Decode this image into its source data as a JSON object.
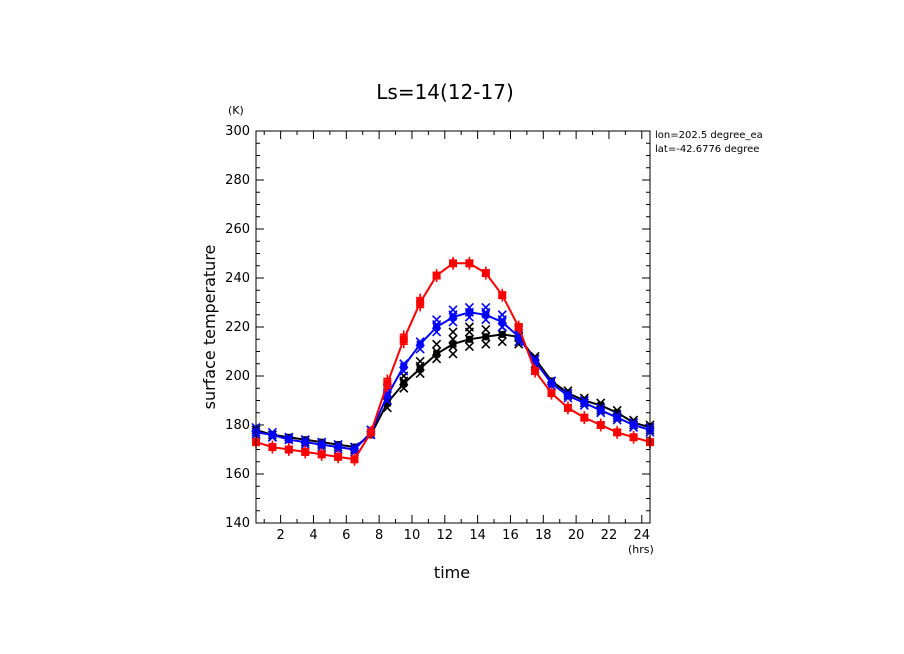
{
  "chart_data": {
    "type": "line",
    "title": "Ls=14(12-17)",
    "xlabel": "time",
    "ylabel": "surface temperature",
    "x_unit": "(hrs)",
    "y_unit": "(K)",
    "xlim": [
      0.5,
      24.5
    ],
    "ylim": [
      140,
      300
    ],
    "x_ticks": [
      2,
      4,
      6,
      8,
      10,
      12,
      14,
      16,
      18,
      20,
      22,
      24
    ],
    "y_ticks": [
      140,
      160,
      180,
      200,
      220,
      240,
      260,
      280,
      300
    ],
    "annotations": [
      "lon=202.5 degree_ea",
      "lat=-42.6776 degree"
    ],
    "grid": false,
    "series": [
      {
        "color": "#000000",
        "marker": "x",
        "x": [
          0.5,
          1.5,
          2.5,
          3.5,
          4.5,
          5.5,
          6.5,
          7.5,
          8.5,
          9.5,
          10.5,
          11.5,
          12.5,
          13.5,
          14.5,
          15.5,
          16.5,
          17.5,
          18.5,
          19.5,
          20.5,
          21.5,
          22.5,
          23.5,
          24.5
        ],
        "y": [
          178,
          176,
          175,
          174,
          173,
          172,
          171,
          176,
          189,
          197,
          203,
          209,
          213,
          215,
          216,
          217,
          216,
          207,
          198,
          193,
          190,
          188,
          185,
          181,
          179
        ],
        "scatter": [
          [
            0.5,
            178
          ],
          [
            0.5,
            176
          ],
          [
            1.5,
            176
          ],
          [
            1.5,
            175
          ],
          [
            2.5,
            175
          ],
          [
            2.5,
            174
          ],
          [
            3.5,
            174
          ],
          [
            3.5,
            173
          ],
          [
            4.5,
            173
          ],
          [
            4.5,
            172
          ],
          [
            5.5,
            172
          ],
          [
            5.5,
            171
          ],
          [
            6.5,
            171
          ],
          [
            6.5,
            170
          ],
          [
            7.5,
            176
          ],
          [
            7.5,
            178
          ],
          [
            8.5,
            187
          ],
          [
            8.5,
            190
          ],
          [
            8.5,
            192
          ],
          [
            9.5,
            195
          ],
          [
            9.5,
            198
          ],
          [
            9.5,
            200
          ],
          [
            10.5,
            201
          ],
          [
            10.5,
            204
          ],
          [
            10.5,
            206
          ],
          [
            11.5,
            207
          ],
          [
            11.5,
            210
          ],
          [
            11.5,
            213
          ],
          [
            12.5,
            209
          ],
          [
            12.5,
            212
          ],
          [
            12.5,
            215
          ],
          [
            12.5,
            218
          ],
          [
            13.5,
            212
          ],
          [
            13.5,
            215
          ],
          [
            13.5,
            218
          ],
          [
            13.5,
            220
          ],
          [
            14.5,
            213
          ],
          [
            14.5,
            216
          ],
          [
            14.5,
            219
          ],
          [
            15.5,
            214
          ],
          [
            15.5,
            217
          ],
          [
            15.5,
            220
          ],
          [
            16.5,
            213
          ],
          [
            16.5,
            216
          ],
          [
            16.5,
            219
          ],
          [
            17.5,
            205
          ],
          [
            17.5,
            208
          ],
          [
            18.5,
            196
          ],
          [
            18.5,
            198
          ],
          [
            19.5,
            192
          ],
          [
            19.5,
            194
          ],
          [
            20.5,
            189
          ],
          [
            20.5,
            191
          ],
          [
            21.5,
            186
          ],
          [
            21.5,
            189
          ],
          [
            22.5,
            183
          ],
          [
            22.5,
            186
          ],
          [
            23.5,
            180
          ],
          [
            23.5,
            182
          ],
          [
            24.5,
            178
          ],
          [
            24.5,
            180
          ]
        ]
      },
      {
        "color": "#0000ff",
        "marker": "x",
        "x": [
          0.5,
          1.5,
          2.5,
          3.5,
          4.5,
          5.5,
          6.5,
          7.5,
          8.5,
          9.5,
          10.5,
          11.5,
          12.5,
          13.5,
          14.5,
          15.5,
          16.5,
          17.5,
          18.5,
          19.5,
          20.5,
          21.5,
          22.5,
          23.5,
          24.5
        ],
        "y": [
          177,
          176,
          174,
          173,
          172,
          171,
          170,
          177,
          192,
          204,
          213,
          220,
          224,
          226,
          225,
          222,
          216,
          206,
          197,
          192,
          189,
          186,
          183,
          180,
          178
        ],
        "scatter": [
          [
            0.5,
            179
          ],
          [
            0.5,
            177
          ],
          [
            0.5,
            176
          ],
          [
            1.5,
            177
          ],
          [
            1.5,
            175
          ],
          [
            2.5,
            175
          ],
          [
            2.5,
            174
          ],
          [
            3.5,
            174
          ],
          [
            3.5,
            172
          ],
          [
            4.5,
            173
          ],
          [
            4.5,
            171
          ],
          [
            5.5,
            172
          ],
          [
            5.5,
            170
          ],
          [
            6.5,
            171
          ],
          [
            6.5,
            169
          ],
          [
            7.5,
            176
          ],
          [
            7.5,
            178
          ],
          [
            8.5,
            190
          ],
          [
            8.5,
            193
          ],
          [
            8.5,
            195
          ],
          [
            9.5,
            202
          ],
          [
            9.5,
            205
          ],
          [
            10.5,
            211
          ],
          [
            10.5,
            214
          ],
          [
            11.5,
            218
          ],
          [
            11.5,
            221
          ],
          [
            11.5,
            223
          ],
          [
            12.5,
            222
          ],
          [
            12.5,
            225
          ],
          [
            12.5,
            227
          ],
          [
            13.5,
            224
          ],
          [
            13.5,
            226
          ],
          [
            13.5,
            228
          ],
          [
            14.5,
            223
          ],
          [
            14.5,
            226
          ],
          [
            14.5,
            228
          ],
          [
            15.5,
            220
          ],
          [
            15.5,
            223
          ],
          [
            15.5,
            225
          ],
          [
            16.5,
            214
          ],
          [
            16.5,
            217
          ],
          [
            17.5,
            204
          ],
          [
            17.5,
            207
          ],
          [
            18.5,
            196
          ],
          [
            18.5,
            198
          ],
          [
            19.5,
            191
          ],
          [
            19.5,
            193
          ],
          [
            20.5,
            188
          ],
          [
            20.5,
            190
          ],
          [
            21.5,
            185
          ],
          [
            21.5,
            187
          ],
          [
            22.5,
            182
          ],
          [
            22.5,
            184
          ],
          [
            23.5,
            179
          ],
          [
            23.5,
            181
          ],
          [
            24.5,
            177
          ],
          [
            24.5,
            179
          ]
        ]
      },
      {
        "color": "#ff0000",
        "marker": "plus",
        "x": [
          0.5,
          1.5,
          2.5,
          3.5,
          4.5,
          5.5,
          6.5,
          7.5,
          8.5,
          9.5,
          10.5,
          11.5,
          12.5,
          13.5,
          14.5,
          15.5,
          16.5,
          17.5,
          18.5,
          19.5,
          20.5,
          21.5,
          22.5,
          23.5,
          24.5
        ],
        "y": [
          173,
          171,
          170,
          169,
          168,
          167,
          166,
          177,
          197,
          215,
          230,
          241,
          246,
          246,
          242,
          233,
          220,
          202,
          193,
          187,
          183,
          180,
          177,
          175,
          173
        ],
        "scatter": [
          [
            0.5,
            174
          ],
          [
            0.5,
            172
          ],
          [
            1.5,
            172
          ],
          [
            1.5,
            170
          ],
          [
            2.5,
            171
          ],
          [
            2.5,
            169
          ],
          [
            3.5,
            170
          ],
          [
            3.5,
            168
          ],
          [
            4.5,
            169
          ],
          [
            4.5,
            167
          ],
          [
            5.5,
            168
          ],
          [
            5.5,
            166
          ],
          [
            6.5,
            167
          ],
          [
            6.5,
            165
          ],
          [
            7.5,
            176
          ],
          [
            7.5,
            178
          ],
          [
            8.5,
            195
          ],
          [
            8.5,
            197
          ],
          [
            8.5,
            199
          ],
          [
            9.5,
            213
          ],
          [
            9.5,
            215
          ],
          [
            9.5,
            217
          ],
          [
            10.5,
            228
          ],
          [
            10.5,
            230
          ],
          [
            10.5,
            232
          ],
          [
            11.5,
            240
          ],
          [
            11.5,
            242
          ],
          [
            12.5,
            245
          ],
          [
            12.5,
            247
          ],
          [
            13.5,
            245
          ],
          [
            13.5,
            247
          ],
          [
            14.5,
            241
          ],
          [
            14.5,
            243
          ],
          [
            15.5,
            232
          ],
          [
            15.5,
            234
          ],
          [
            16.5,
            219
          ],
          [
            16.5,
            221
          ],
          [
            17.5,
            201
          ],
          [
            17.5,
            203
          ],
          [
            18.5,
            192
          ],
          [
            18.5,
            194
          ],
          [
            19.5,
            186
          ],
          [
            19.5,
            188
          ],
          [
            20.5,
            182
          ],
          [
            20.5,
            184
          ],
          [
            21.5,
            179
          ],
          [
            21.5,
            181
          ],
          [
            22.5,
            176
          ],
          [
            22.5,
            178
          ],
          [
            23.5,
            174
          ],
          [
            23.5,
            176
          ],
          [
            24.5,
            172
          ],
          [
            24.5,
            174
          ]
        ]
      }
    ]
  }
}
